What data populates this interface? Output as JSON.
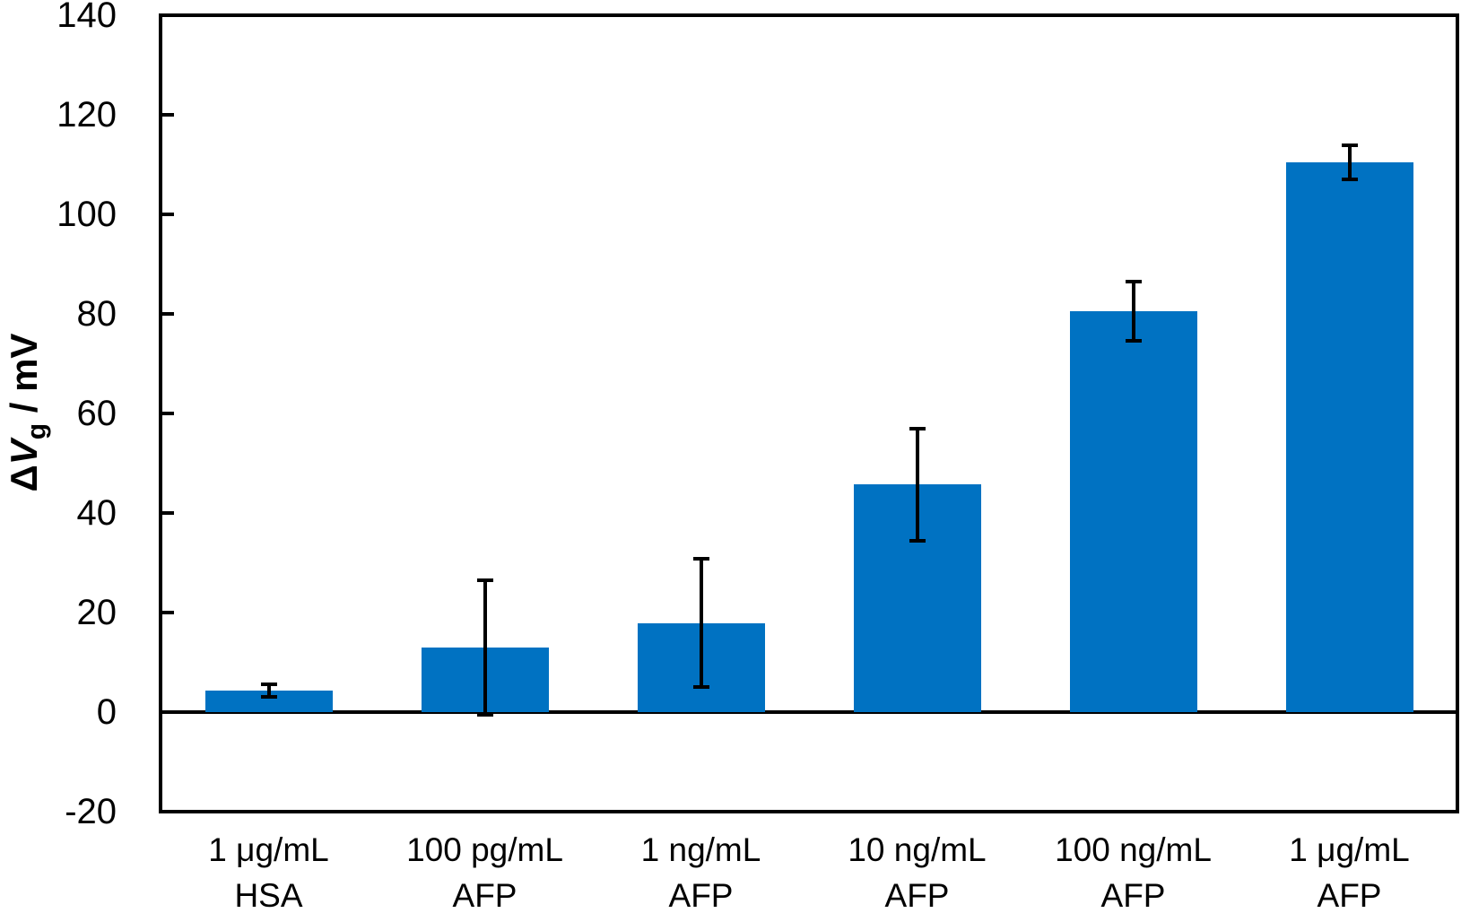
{
  "chart_data": {
    "type": "bar",
    "title": "",
    "xlabel": "",
    "ylabel_text": "ΔVg / mV",
    "ylabel_rich": {
      "prefix": "Δ",
      "symbol": "V",
      "subscript": "g",
      "suffix": " / mV"
    },
    "categories": [
      [
        "1 μg/mL",
        "HSA"
      ],
      [
        "100 pg/mL",
        "AFP"
      ],
      [
        "1 ng/mL",
        "AFP"
      ],
      [
        "10 ng/mL",
        "AFP"
      ],
      [
        "100 ng/mL",
        "AFP"
      ],
      [
        "1 μg/mL",
        "AFP"
      ]
    ],
    "series": [
      {
        "name": "ΔVg",
        "values": [
          4.3,
          12.9,
          17.9,
          45.7,
          80.5,
          110.5
        ],
        "errors": [
          1.3,
          13.5,
          12.9,
          11.2,
          5.9,
          3.4
        ]
      }
    ],
    "ylim": [
      -20,
      140
    ],
    "yticks": [
      -20,
      0,
      20,
      40,
      60,
      80,
      100,
      120,
      140
    ],
    "grid": false,
    "legend_visible": false,
    "bar_color": "#0072C2",
    "axis_color": "#000000",
    "error_bar_color": "#000000",
    "background_color": "#FFFFFF"
  }
}
